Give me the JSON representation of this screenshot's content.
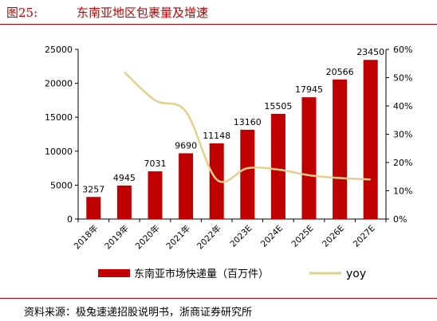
{
  "header": {
    "figure_no": "图25:",
    "title": "东南亚地区包裹量及增速"
  },
  "source": "资料来源：极兔速递招股说明书，浙商证券研究所",
  "colors": {
    "bar": "#c00000",
    "line": "#e6cf8a",
    "rule": "#c00000"
  },
  "chart_data": {
    "type": "bar",
    "title": "东南亚地区包裹量及增速",
    "categories": [
      "2018年",
      "2019年",
      "2020年",
      "2021年",
      "2022年",
      "2023E",
      "2024E",
      "2025E",
      "2026E",
      "2027E"
    ],
    "series": [
      {
        "name": "东南亚市场快递量（百万件）",
        "type": "bar",
        "axis": "left",
        "values": [
          3257,
          4945,
          7031,
          9690,
          11148,
          13160,
          15505,
          17945,
          20566,
          23450
        ]
      },
      {
        "name": "yoy",
        "type": "line",
        "axis": "right",
        "values": [
          null,
          0.52,
          0.42,
          0.38,
          0.14,
          0.18,
          0.175,
          0.155,
          0.145,
          0.14
        ]
      }
    ],
    "ylim_left": [
      0,
      25000
    ],
    "yticks_left": [
      0,
      5000,
      10000,
      15000,
      20000,
      25000
    ],
    "ylim_right": [
      0,
      0.6
    ],
    "yticks_right": [
      "0%",
      "10%",
      "20%",
      "30%",
      "40%",
      "50%",
      "60%"
    ],
    "legend": "bottom",
    "grid": false
  }
}
